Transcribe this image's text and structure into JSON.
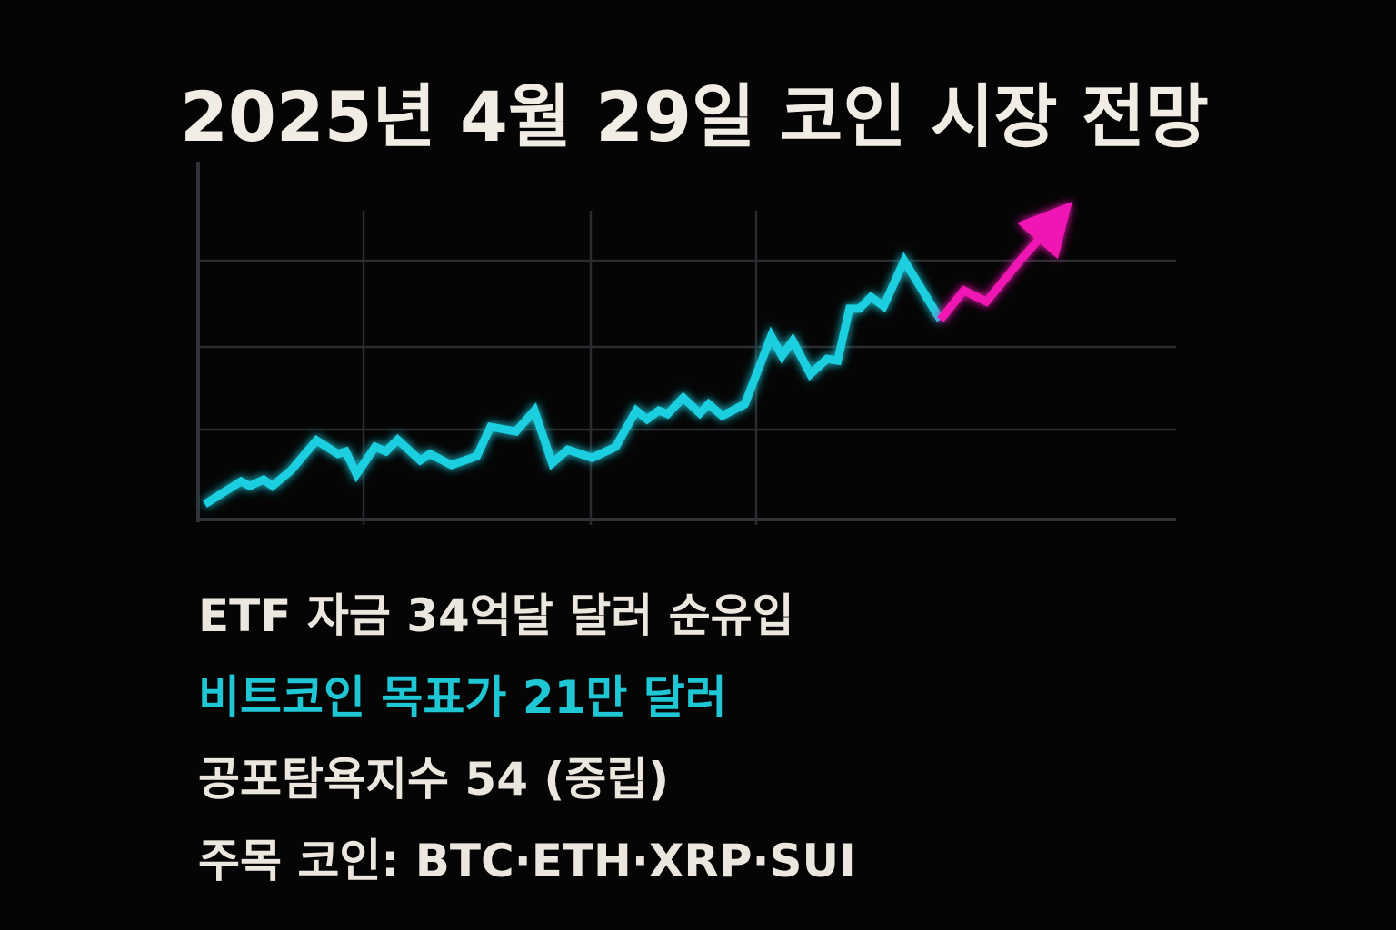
{
  "chart_data": {
    "type": "line",
    "title": "2025년 4월 29일 코인 시장 전망",
    "annotations": [
      "ETF 자금 34억달 달러 순유입",
      "비트코인 목표가 21만 달러",
      "공포탐욕지수 54 (중립)",
      "주목 코인: BTC·ETH·XRP·SUI"
    ],
    "xlim": [
      0,
      100
    ],
    "ylim": [
      0,
      100
    ],
    "x": [
      0.7,
      4.4,
      5.3,
      6.7,
      7.6,
      9.5,
      12.1,
      14.3,
      15.1,
      16.2,
      18.1,
      19.2,
      20.4,
      22.7,
      23.7,
      25.9,
      28.5,
      29.9,
      32.5,
      34.4,
      36.2,
      37.8,
      40.3,
      42.7,
      44.8,
      45.9,
      47.1,
      48.0,
      49.6,
      51.3,
      52.2,
      53.6,
      55.9,
      58.6,
      59.7,
      60.8,
      62.6,
      64.3,
      65.4,
      66.6,
      67.6,
      68.8,
      70.1,
      72.2,
      75.9,
      78.3,
      80.6,
      84.3,
      89.4
    ],
    "series": [
      {
        "color": "#1ccfe0",
        "values": [
          3.8,
          10.2,
          8.9,
          10.7,
          8.9,
          13.3,
          21.7,
          17.9,
          18.6,
          12.2,
          19.9,
          18.6,
          21.9,
          16.1,
          17.9,
          14.8,
          17.3,
          25.5,
          24.2,
          30.1,
          15.3,
          19.1,
          16.8,
          19.9,
          30.1,
          27.6,
          30.1,
          29.1,
          33.7,
          29.3,
          31.9,
          28.6,
          31.9,
          51.0,
          45.4,
          49.7,
          40.3,
          44.6,
          44.1,
          58.7,
          58.7,
          62.0,
          59.4,
          72.2,
          55.6,
          null,
          null,
          null,
          null
        ]
      },
      {
        "color": "#f016b4",
        "values": [
          null,
          null,
          null,
          null,
          null,
          null,
          null,
          null,
          null,
          null,
          null,
          null,
          null,
          null,
          null,
          null,
          null,
          null,
          null,
          null,
          null,
          null,
          null,
          null,
          null,
          null,
          null,
          null,
          null,
          null,
          null,
          null,
          null,
          null,
          null,
          null,
          null,
          null,
          null,
          null,
          null,
          null,
          null,
          null,
          55.6,
          63.8,
          60.7,
          73.0,
          88.8
        ]
      }
    ]
  }
}
